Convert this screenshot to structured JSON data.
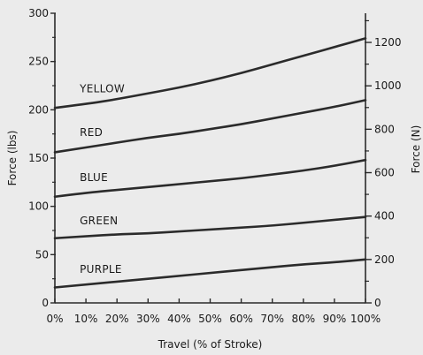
{
  "chart_data": {
    "type": "line",
    "xlabel": "Travel (% of Stroke)",
    "ylabel_left": "Force (lbs)",
    "ylabel_right": "Force (N)",
    "x": [
      0,
      10,
      20,
      30,
      40,
      50,
      60,
      70,
      80,
      90,
      100
    ],
    "x_tick_labels": [
      "0%",
      "10%",
      "20%",
      "30%",
      "40%",
      "50%",
      "60%",
      "70%",
      "80%",
      "90%",
      "100%"
    ],
    "xlim": [
      0,
      100
    ],
    "ylim_left": [
      0,
      300
    ],
    "y_left_ticks": [
      0,
      50,
      100,
      150,
      200,
      250,
      300
    ],
    "y_left_tick_labels": [
      "0",
      "50",
      "100",
      "150",
      "200",
      "250",
      "300"
    ],
    "y_right_ticks": [
      0,
      200,
      400,
      600,
      800,
      1000,
      1200
    ],
    "y_right_tick_labels": [
      "0",
      "200",
      "400",
      "600",
      "800",
      "1000",
      "1200"
    ],
    "y_right_unit_factor_N_per_lb": 4.448,
    "grid": false,
    "line_color": "#2b2b2b",
    "background": "#ebebeb",
    "series": [
      {
        "name": "YELLOW",
        "values": [
          202,
          206,
          211,
          217,
          223,
          230,
          238,
          247,
          256,
          265,
          274
        ]
      },
      {
        "name": "RED",
        "values": [
          156,
          161,
          166,
          171,
          175,
          180,
          185,
          191,
          197,
          203,
          210
        ]
      },
      {
        "name": "BLUE",
        "values": [
          110,
          114,
          117,
          120,
          123,
          126,
          129,
          133,
          137,
          142,
          148
        ]
      },
      {
        "name": "GREEN",
        "values": [
          67,
          69,
          71,
          72,
          74,
          76,
          78,
          80,
          83,
          86,
          89
        ]
      },
      {
        "name": "PURPLE",
        "values": [
          16,
          19,
          22,
          25,
          28,
          31,
          34,
          37,
          40,
          42,
          45
        ]
      }
    ]
  }
}
